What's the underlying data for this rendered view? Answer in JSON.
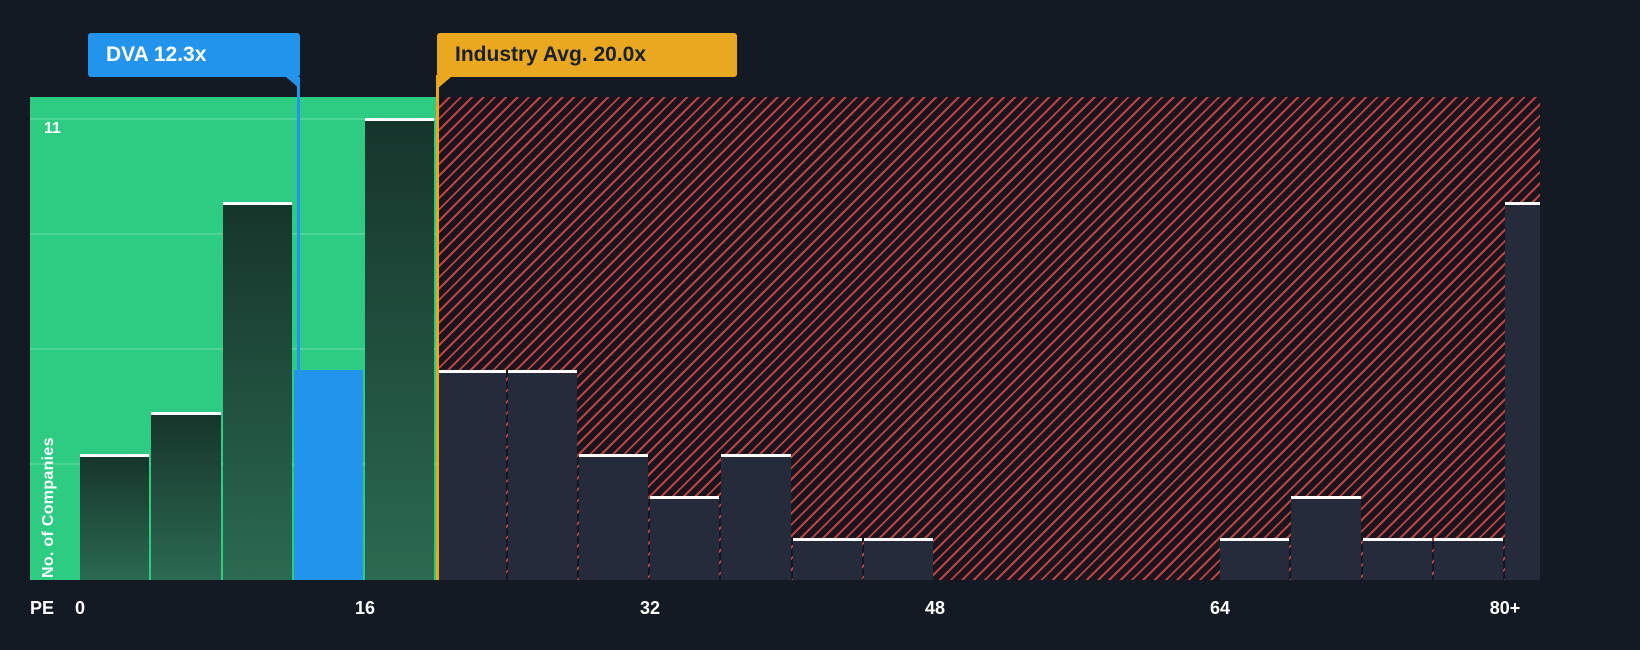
{
  "chart_data": {
    "type": "bar",
    "title": "",
    "xlabel": "PE",
    "ylabel": "No. of Companies",
    "ylim": [
      0,
      11
    ],
    "y_max": 11,
    "y_max_label": "11",
    "x_ticks": [
      "0",
      "16",
      "32",
      "48",
      "64",
      "80+"
    ],
    "bin_size": 4,
    "bins": [
      {
        "range": "0-4",
        "count": 3,
        "zone": "below"
      },
      {
        "range": "4-8",
        "count": 4,
        "zone": "below"
      },
      {
        "range": "8-12",
        "count": 9,
        "zone": "below"
      },
      {
        "range": "12-16",
        "count": 5,
        "zone": "company"
      },
      {
        "range": "16-20",
        "count": 11,
        "zone": "below"
      },
      {
        "range": "20-24",
        "count": 5,
        "zone": "above"
      },
      {
        "range": "24-28",
        "count": 5,
        "zone": "above"
      },
      {
        "range": "28-32",
        "count": 3,
        "zone": "above"
      },
      {
        "range": "32-36",
        "count": 2,
        "zone": "above"
      },
      {
        "range": "36-40",
        "count": 3,
        "zone": "above"
      },
      {
        "range": "40-44",
        "count": 1,
        "zone": "above"
      },
      {
        "range": "44-48",
        "count": 1,
        "zone": "above"
      },
      {
        "range": "48-52",
        "count": 0,
        "zone": "above"
      },
      {
        "range": "52-56",
        "count": 0,
        "zone": "above"
      },
      {
        "range": "56-60",
        "count": 0,
        "zone": "above"
      },
      {
        "range": "60-64",
        "count": 0,
        "zone": "above"
      },
      {
        "range": "64-68",
        "count": 1,
        "zone": "above"
      },
      {
        "range": "68-72",
        "count": 2,
        "zone": "above"
      },
      {
        "range": "72-76",
        "count": 1,
        "zone": "above"
      },
      {
        "range": "76-80",
        "count": 1,
        "zone": "above"
      },
      {
        "range": "80+",
        "count": 9,
        "zone": "above"
      }
    ],
    "company_marker": {
      "ticker": "DVA",
      "pe": 12.3,
      "label": "DVA 12.3x"
    },
    "industry_marker": {
      "label": "Industry Avg. 20.0x",
      "pe": 20.0
    }
  },
  "callouts": {
    "company": "DVA 12.3x",
    "industry": "Industry Avg. 20.0x"
  },
  "colors": {
    "background": "#141A23",
    "green_zone": "#2ECC83",
    "company_blue": "#2394EC",
    "industry_gold": "#EAA821",
    "hatch_red": "#E0524C",
    "bar_top": "#FFFFFF"
  }
}
